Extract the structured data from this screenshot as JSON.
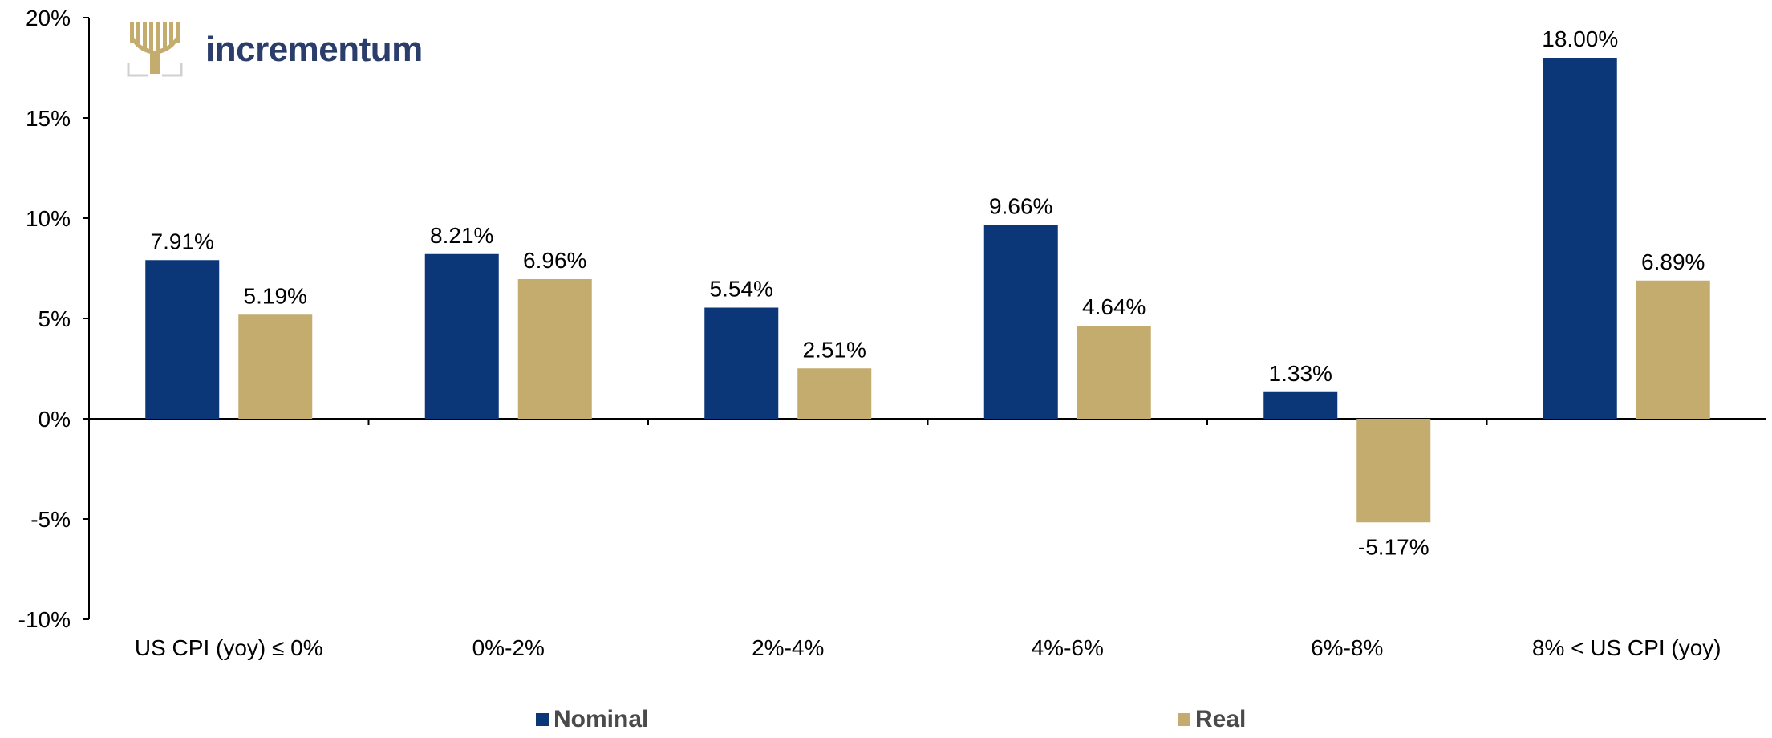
{
  "logo": {
    "text": "incrementum",
    "color": "#c4ab6e"
  },
  "colors": {
    "nominal": "#0b3779",
    "real": "#c4ab6e",
    "axis": "#000000",
    "text": "#000000"
  },
  "chart_data": {
    "type": "bar",
    "categories": [
      "US CPI (yoy) ≤ 0%",
      "0%-2%",
      "2%-4%",
      "4%-6%",
      "6%-8%",
      "8% < US CPI (yoy)"
    ],
    "series": [
      {
        "name": "Nominal",
        "values": [
          7.91,
          8.21,
          5.54,
          9.66,
          1.33,
          18.0
        ],
        "labels": [
          "7.91%",
          "8.21%",
          "5.54%",
          "9.66%",
          "1.33%",
          "18.00%"
        ]
      },
      {
        "name": "Real",
        "values": [
          5.19,
          6.96,
          2.51,
          4.64,
          -5.17,
          6.89
        ],
        "labels": [
          "5.19%",
          "6.96%",
          "2.51%",
          "4.64%",
          "-5.17%",
          "6.89%"
        ]
      }
    ],
    "ylim": [
      -10,
      20
    ],
    "yticks": [
      20,
      15,
      10,
      5,
      0,
      -5,
      -10
    ],
    "ytick_labels": [
      "20%",
      "15%",
      "10%",
      "5%",
      "0%",
      "-5%",
      "-10%"
    ],
    "legend_position": "bottom",
    "grid": false
  }
}
